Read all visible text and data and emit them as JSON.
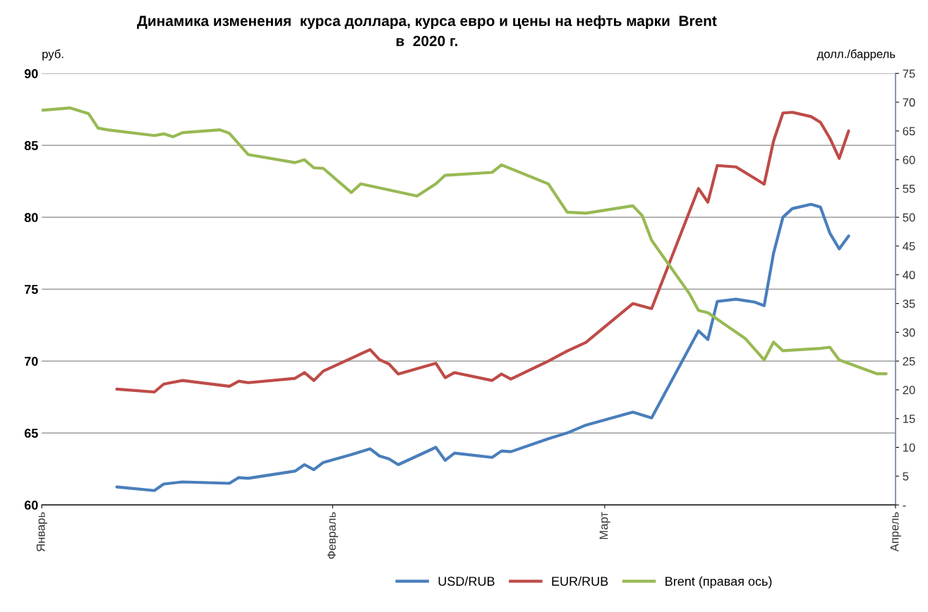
{
  "chart_data": {
    "type": "line",
    "title": "Динамика изменения  курса доллара, курса евро и цены на нефть марки  Brent\nв  2020 г.",
    "ylabel": "руб.",
    "y2label": "долл./баррель",
    "categories": [
      "Январь",
      null,
      null,
      null,
      null,
      null,
      null,
      null,
      null,
      null,
      null,
      null,
      null,
      null,
      null,
      null,
      null,
      null,
      null,
      null,
      null,
      null,
      null,
      null,
      null,
      null,
      null,
      null,
      null,
      null,
      null,
      "Февраль",
      null,
      null,
      null,
      null,
      null,
      null,
      null,
      null,
      null,
      null,
      null,
      null,
      null,
      null,
      null,
      null,
      null,
      null,
      null,
      null,
      null,
      null,
      null,
      null,
      null,
      null,
      null,
      null,
      "Март",
      null,
      null,
      null,
      null,
      null,
      null,
      null,
      null,
      null,
      null,
      null,
      null,
      null,
      null,
      null,
      null,
      null,
      null,
      null,
      null,
      null,
      null,
      null,
      null,
      null,
      null,
      null,
      null,
      null,
      null,
      "Апрель"
    ],
    "ylim": [
      60,
      90
    ],
    "yticks": [
      60,
      65,
      70,
      75,
      80,
      85,
      90
    ],
    "y2lim": [
      0,
      75
    ],
    "y2ticks": [
      {
        "value": 0,
        "label": "-"
      },
      5,
      10,
      15,
      20,
      25,
      30,
      35,
      40,
      45,
      50,
      55,
      60,
      65,
      70,
      75
    ],
    "grid": "y",
    "legend": "bottom",
    "marker": "none",
    "line_style": "solid",
    "series": [
      {
        "name": "USD/RUB",
        "color": "#4a7ebb",
        "values": [
          null,
          null,
          null,
          null,
          null,
          null,
          null,
          null,
          61.25,
          null,
          null,
          null,
          61.0,
          61.45,
          null,
          61.6,
          null,
          null,
          null,
          null,
          61.5,
          61.9,
          61.85,
          null,
          null,
          null,
          null,
          62.35,
          62.8,
          62.45,
          62.95,
          null,
          null,
          63.5,
          null,
          63.9,
          63.4,
          63.2,
          62.8,
          null,
          null,
          null,
          64.0,
          63.1,
          63.6,
          null,
          null,
          null,
          63.3,
          63.75,
          63.7,
          null,
          null,
          null,
          64.6,
          null,
          65.0,
          null,
          65.55,
          null,
          null,
          null,
          null,
          66.45,
          null,
          66.05,
          null,
          null,
          null,
          null,
          72.1,
          71.5,
          74.15,
          null,
          74.3,
          null,
          74.1,
          73.85,
          77.5,
          80.0,
          80.6,
          null,
          80.9,
          80.7,
          78.9,
          77.8,
          78.7,
          null,
          null,
          null,
          null,
          null
        ]
      },
      {
        "name": "EUR/RUB",
        "color": "#be4b48",
        "values": [
          null,
          null,
          null,
          null,
          null,
          null,
          null,
          null,
          68.05,
          null,
          null,
          null,
          67.85,
          68.4,
          null,
          68.65,
          null,
          null,
          null,
          null,
          68.25,
          68.6,
          68.5,
          null,
          null,
          null,
          null,
          68.8,
          69.2,
          68.65,
          69.3,
          null,
          null,
          70.2,
          null,
          70.8,
          70.1,
          69.8,
          69.1,
          null,
          null,
          null,
          69.85,
          68.85,
          69.2,
          null,
          null,
          null,
          68.65,
          69.1,
          68.75,
          null,
          null,
          null,
          70.0,
          null,
          70.7,
          null,
          71.3,
          null,
          null,
          null,
          null,
          74.0,
          null,
          73.65,
          null,
          null,
          null,
          null,
          82.0,
          81.05,
          83.6,
          null,
          83.5,
          null,
          82.7,
          82.3,
          85.3,
          87.25,
          87.3,
          null,
          87.0,
          86.6,
          85.5,
          84.1,
          86.0,
          null,
          null,
          null,
          null,
          null
        ]
      },
      {
        "name": "Brent (правая ось)",
        "color": "#98b954",
        "axis": "y2",
        "values": [
          68.6,
          null,
          null,
          69.0,
          null,
          68.0,
          65.5,
          65.2,
          null,
          null,
          null,
          null,
          64.2,
          64.5,
          64.0,
          64.7,
          null,
          null,
          null,
          65.2,
          64.6,
          null,
          60.9,
          null,
          null,
          null,
          null,
          59.5,
          60.0,
          58.6,
          58.5,
          null,
          null,
          54.3,
          55.8,
          null,
          null,
          null,
          null,
          null,
          53.7,
          null,
          55.8,
          57.3,
          null,
          null,
          null,
          null,
          57.8,
          59.1,
          null,
          null,
          null,
          null,
          55.8,
          null,
          50.9,
          null,
          50.7,
          null,
          null,
          null,
          null,
          52.0,
          50.3,
          46.0,
          null,
          null,
          null,
          36.8,
          33.8,
          33.4,
          null,
          null,
          null,
          28.9,
          null,
          25.2,
          28.3,
          26.8,
          null,
          null,
          null,
          27.2,
          27.4,
          25.2,
          null,
          null,
          null,
          22.8,
          22.8,
          null
        ]
      }
    ]
  }
}
